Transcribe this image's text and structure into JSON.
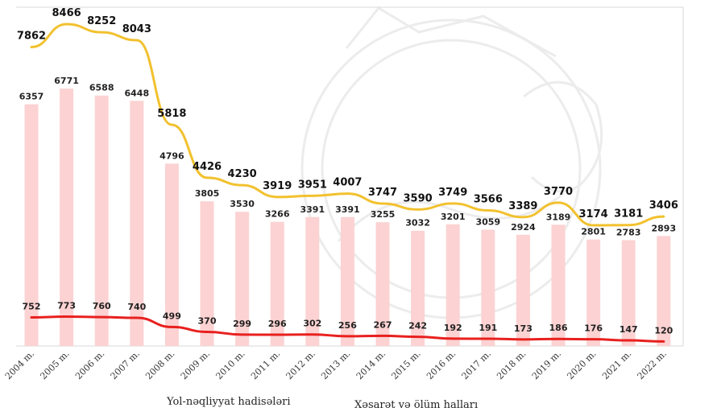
{
  "chart_data": {
    "type": "bar",
    "categories": [
      "2004 m.",
      "2005 m.",
      "2006 m.",
      "2007 m.",
      "2008 m.",
      "2009 m.",
      "2010 m.",
      "2011 m.",
      "2012 m.",
      "2013 m.",
      "2014 m.",
      "2015 m.",
      "2016 m.",
      "2017 m.",
      "2018 m.",
      "2019 m.",
      "2020 m.",
      "2021 m.",
      "2022 m."
    ],
    "series": [
      {
        "name": "",
        "kind": "line",
        "color": "#f2c12e",
        "values": [
          7862,
          8466,
          8252,
          8043,
          5818,
          4426,
          4230,
          3919,
          3951,
          4007,
          3747,
          3590,
          3749,
          3566,
          3389,
          3770,
          3174,
          3181,
          3406
        ]
      },
      {
        "name": "",
        "kind": "bar",
        "color": "#fcd2d2",
        "values": [
          6357,
          6771,
          6588,
          6448,
          4796,
          3805,
          3530,
          3266,
          3391,
          3391,
          3255,
          3032,
          3201,
          3059,
          2924,
          3189,
          2801,
          2783,
          2893
        ]
      },
      {
        "name": "",
        "kind": "line",
        "color": "#e8201e",
        "values": [
          752,
          773,
          760,
          740,
          499,
          370,
          299,
          296,
          302,
          256,
          267,
          242,
          192,
          191,
          173,
          186,
          176,
          147,
          120
        ]
      }
    ],
    "legend": [
      "Yol-nəqliyyat hadisələri",
      "Xəsarət və ölüm halları"
    ],
    "ylim": [
      0,
      9000
    ],
    "grid": false
  }
}
